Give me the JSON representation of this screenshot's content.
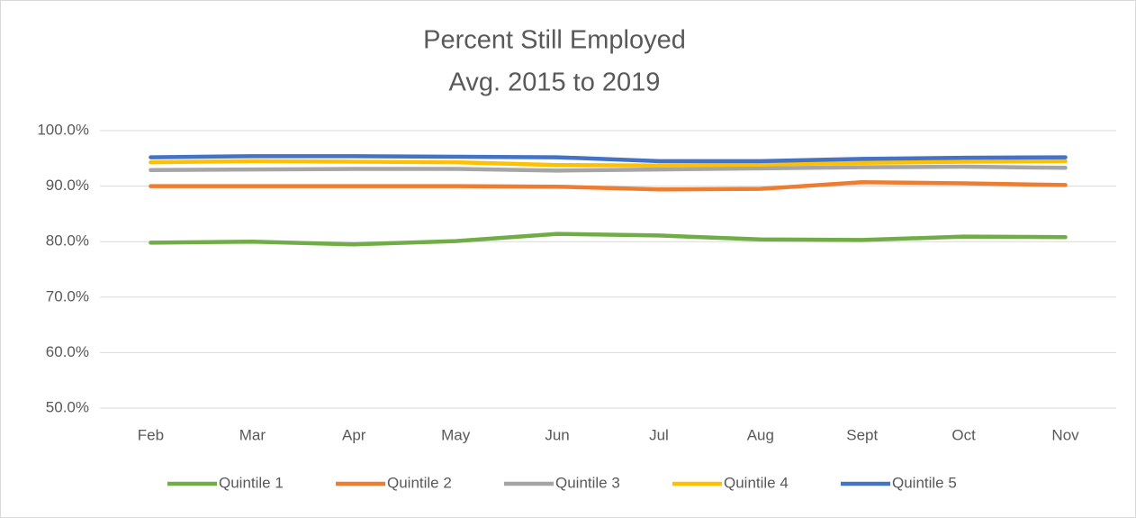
{
  "chart_data": {
    "type": "line",
    "title": [
      "Percent Still Employed",
      "Avg. 2015 to 2019"
    ],
    "categories": [
      "Feb",
      "Mar",
      "Apr",
      "May",
      "Jun",
      "Jul",
      "Aug",
      "Sept",
      "Oct",
      "Nov"
    ],
    "series": [
      {
        "name": "Quintile 1",
        "color": "#70ad47",
        "values": [
          79.8,
          80.0,
          79.5,
          80.1,
          81.4,
          81.1,
          80.4,
          80.3,
          80.9,
          80.8
        ]
      },
      {
        "name": "Quintile 2",
        "color": "#ed7d31",
        "values": [
          90.0,
          90.0,
          90.0,
          90.0,
          89.9,
          89.4,
          89.5,
          90.7,
          90.5,
          90.2
        ]
      },
      {
        "name": "Quintile 3",
        "color": "#a5a5a5",
        "values": [
          92.9,
          93.0,
          93.1,
          93.1,
          92.8,
          93.0,
          93.2,
          93.4,
          93.5,
          93.3
        ]
      },
      {
        "name": "Quintile 4",
        "color": "#ffc000",
        "values": [
          94.3,
          94.5,
          94.4,
          94.3,
          93.8,
          93.7,
          93.9,
          94.2,
          94.4,
          94.5
        ]
      },
      {
        "name": "Quintile 5",
        "color": "#4472c4",
        "values": [
          95.2,
          95.4,
          95.4,
          95.3,
          95.2,
          94.5,
          94.5,
          94.9,
          95.1,
          95.2
        ]
      }
    ],
    "ylim": [
      50,
      100
    ],
    "yticks": [
      {
        "value": 50,
        "label": "50.0%"
      },
      {
        "value": 60,
        "label": "60.0%"
      },
      {
        "value": 70,
        "label": "70.0%"
      },
      {
        "value": 80,
        "label": "80.0%"
      },
      {
        "value": 90,
        "label": "90.0%"
      },
      {
        "value": 100,
        "label": "100.0%"
      }
    ],
    "grid": true,
    "legend": "bottom"
  }
}
